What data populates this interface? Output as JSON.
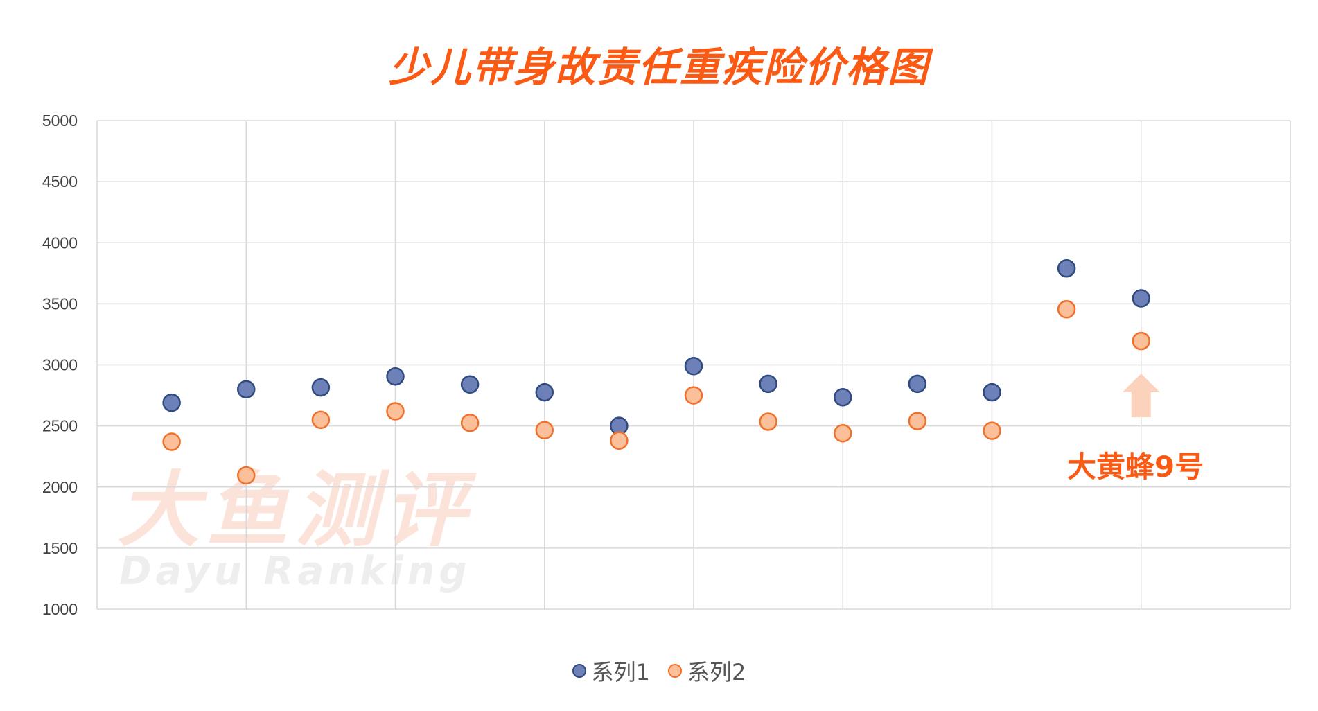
{
  "chart_data": {
    "type": "scatter",
    "title": "少儿带身故责任重疾险价格图",
    "xlabel": "",
    "ylabel": "",
    "x": [
      1,
      2,
      3,
      4,
      5,
      6,
      7,
      8,
      9,
      10,
      11,
      12,
      13,
      14
    ],
    "series": [
      {
        "name": "系列1",
        "color": "#6e80b8",
        "stroke": "#2f4a7e",
        "values": [
          2690,
          2800,
          2815,
          2905,
          2840,
          2775,
          2500,
          2990,
          2845,
          2735,
          2845,
          2775,
          3790,
          3545
        ]
      },
      {
        "name": "系列2",
        "color": "#fbbf99",
        "stroke": "#f0702a",
        "values": [
          2370,
          2095,
          2550,
          2620,
          2525,
          2465,
          2380,
          2750,
          2535,
          2440,
          2540,
          2460,
          3455,
          3195
        ]
      }
    ],
    "ylim": [
      1000,
      5000
    ],
    "yticks": [
      1000,
      1500,
      2000,
      2500,
      3000,
      3500,
      4000,
      4500,
      5000
    ],
    "xlim": [
      0,
      16
    ],
    "x_gridlines": [
      2,
      4,
      6,
      8,
      10,
      12,
      14
    ],
    "grid": true,
    "legend_position": "bottom",
    "annotation": {
      "text": "大黄蜂9号",
      "target_index": 13,
      "arrow_color": "#fbd3bd"
    }
  },
  "watermark": {
    "zh": "大鱼测评",
    "en": "Dayu Ranking"
  },
  "colors": {
    "title": "#fa5a14",
    "grid": "#d9d9d9"
  }
}
